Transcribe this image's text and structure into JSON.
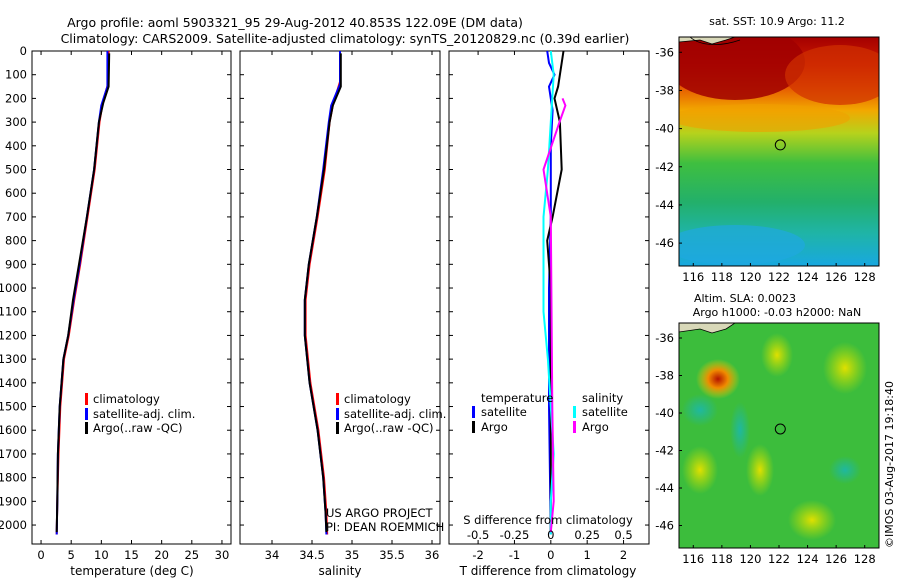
{
  "header": {
    "line1": "Argo profile: aoml 5903321_95 29-Aug-2012 40.853S 122.09E (DM data)",
    "line2": "Climatology: CARS2009. Satellite-adjusted climatology: synTS_20120829.nc (0.39d earlier)"
  },
  "colors": {
    "climatology": "#ff0000",
    "satellite": "#0000ff",
    "argo": "#000000",
    "sat_salinity": "#00ffff",
    "argo_salinity": "#ff00ff"
  },
  "legend_main": [
    "climatology",
    "satellite-adj. clim.",
    "Argo(..raw -QC)"
  ],
  "legend_diff": {
    "temperature_header": "temperature",
    "salinity_header": "salinity",
    "satellite": "satellite",
    "argo": "Argo"
  },
  "credit": {
    "project": "US ARGO PROJECT",
    "pi": "PI: DEAN ROEMMICH"
  },
  "footer": "©IMOS 03-Aug-2017 19:18:40",
  "chart_data": [
    {
      "type": "line",
      "title": "",
      "xlabel": "temperature (deg C)",
      "ylabel": "",
      "xlim": [
        -1.5,
        31.5
      ],
      "ylim": [
        2080,
        0
      ],
      "xticks": [
        0,
        5,
        10,
        15,
        20,
        25,
        30
      ],
      "yticks": [
        0,
        100,
        200,
        300,
        400,
        500,
        600,
        700,
        800,
        900,
        1000,
        1100,
        1200,
        1300,
        1400,
        1500,
        1600,
        1700,
        1800,
        1900,
        2000
      ],
      "series": [
        {
          "name": "climatology",
          "color": "#ff0000",
          "points": [
            [
              11.2,
              0
            ],
            [
              11.1,
              140
            ],
            [
              10.2,
              220
            ],
            [
              9.7,
              300
            ],
            [
              8.9,
              500
            ],
            [
              7.7,
              700
            ],
            [
              6.5,
              900
            ],
            [
              5.5,
              1050
            ],
            [
              4.6,
              1200
            ],
            [
              3.8,
              1300
            ],
            [
              3.2,
              1500
            ],
            [
              2.9,
              1700
            ],
            [
              2.7,
              1900
            ],
            [
              2.6,
              2040
            ]
          ]
        },
        {
          "name": "satellite-adj. clim.",
          "color": "#0000ff",
          "points": [
            [
              11.0,
              0
            ],
            [
              11.0,
              150
            ],
            [
              10.0,
              230
            ],
            [
              9.6,
              300
            ],
            [
              8.8,
              500
            ],
            [
              7.6,
              700
            ],
            [
              6.4,
              900
            ],
            [
              5.4,
              1050
            ],
            [
              4.5,
              1200
            ],
            [
              3.7,
              1300
            ],
            [
              3.1,
              1500
            ],
            [
              2.8,
              1700
            ],
            [
              2.7,
              1900
            ],
            [
              2.6,
              2040
            ]
          ]
        },
        {
          "name": "Argo(..raw -QC)",
          "color": "#000000",
          "points": [
            [
              11.3,
              10
            ],
            [
              11.2,
              150
            ],
            [
              10.3,
              220
            ],
            [
              9.6,
              300
            ],
            [
              8.8,
              500
            ],
            [
              7.6,
              700
            ],
            [
              6.3,
              900
            ],
            [
              5.3,
              1050
            ],
            [
              4.5,
              1200
            ],
            [
              3.7,
              1300
            ],
            [
              3.1,
              1500
            ],
            [
              2.8,
              1700
            ],
            [
              2.7,
              1900
            ],
            [
              2.6,
              2030
            ]
          ]
        }
      ]
    },
    {
      "type": "line",
      "title": "",
      "xlabel": "salinity",
      "ylabel": "",
      "xlim": [
        33.6,
        36.1
      ],
      "ylim": [
        2080,
        0
      ],
      "xticks": [
        34,
        34.5,
        35,
        35.5,
        36
      ],
      "series": [
        {
          "name": "climatology",
          "color": "#ff0000",
          "points": [
            [
              34.85,
              0
            ],
            [
              34.85,
              130
            ],
            [
              34.76,
              230
            ],
            [
              34.72,
              300
            ],
            [
              34.66,
              500
            ],
            [
              34.57,
              700
            ],
            [
              34.47,
              900
            ],
            [
              34.42,
              1050
            ],
            [
              34.42,
              1200
            ],
            [
              34.48,
              1400
            ],
            [
              34.58,
              1600
            ],
            [
              34.65,
              1800
            ],
            [
              34.68,
              1950
            ],
            [
              34.69,
              2040
            ]
          ]
        },
        {
          "name": "satellite-adj. clim.",
          "color": "#0000ff",
          "points": [
            [
              34.85,
              0
            ],
            [
              34.85,
              140
            ],
            [
              34.74,
              230
            ],
            [
              34.71,
              300
            ],
            [
              34.64,
              500
            ],
            [
              34.56,
              700
            ],
            [
              34.46,
              900
            ],
            [
              34.41,
              1050
            ],
            [
              34.41,
              1200
            ],
            [
              34.47,
              1400
            ],
            [
              34.57,
              1600
            ],
            [
              34.64,
              1800
            ],
            [
              34.67,
              1950
            ],
            [
              34.68,
              2040
            ]
          ]
        },
        {
          "name": "Argo(..raw -QC)",
          "color": "#000000",
          "points": [
            [
              34.86,
              10
            ],
            [
              34.86,
              150
            ],
            [
              34.76,
              230
            ],
            [
              34.72,
              300
            ],
            [
              34.65,
              500
            ],
            [
              34.56,
              700
            ],
            [
              34.46,
              900
            ],
            [
              34.41,
              1050
            ],
            [
              34.41,
              1200
            ],
            [
              34.47,
              1400
            ],
            [
              34.57,
              1600
            ],
            [
              34.64,
              1800
            ],
            [
              34.67,
              1950
            ],
            [
              34.68,
              2030
            ]
          ]
        }
      ]
    },
    {
      "type": "line",
      "title": "",
      "xlabel": "T difference from climatology",
      "secondary_xlabel": "S difference from climatology",
      "xlim": [
        -2.8,
        2.7
      ],
      "ylim": [
        2080,
        0
      ],
      "xticks": [
        -2,
        -1,
        0,
        1,
        2
      ],
      "secondary_xticks": [
        -0.5,
        -0.25,
        0,
        0.25,
        0.5
      ],
      "series": [
        {
          "name": "T satellite",
          "color": "#0000ff",
          "points": [
            [
              -0.1,
              0
            ],
            [
              -0.05,
              50
            ],
            [
              0.1,
              100
            ],
            [
              -0.05,
              150
            ],
            [
              0.05,
              250
            ],
            [
              0,
              400
            ],
            [
              0,
              700
            ],
            [
              -0.05,
              1000
            ],
            [
              -0.05,
              1500
            ],
            [
              0,
              2040
            ]
          ]
        },
        {
          "name": "T Argo",
          "color": "#000000",
          "points": [
            [
              0.35,
              0
            ],
            [
              0.3,
              50
            ],
            [
              0.25,
              100
            ],
            [
              0.2,
              150
            ],
            [
              0.1,
              200
            ],
            [
              0.25,
              300
            ],
            [
              0.3,
              500
            ],
            [
              0.05,
              700
            ],
            [
              -0.1,
              800
            ],
            [
              0,
              1000
            ],
            [
              0,
              1500
            ],
            [
              0,
              2030
            ]
          ]
        },
        {
          "name": "S satellite",
          "color": "#00ffff",
          "points": [
            [
              0,
              0
            ],
            [
              0.02,
              100
            ],
            [
              0,
              300
            ],
            [
              -0.02,
              500
            ],
            [
              -0.05,
              700
            ],
            [
              -0.05,
              900
            ],
            [
              -0.05,
              1100
            ],
            [
              -0.02,
              1300
            ],
            [
              0,
              1500
            ],
            [
              0.02,
              1700
            ],
            [
              0,
              1900
            ],
            [
              0,
              2040
            ]
          ]
        },
        {
          "name": "S Argo",
          "color": "#ff00ff",
          "points": [
            [
              0.08,
              200
            ],
            [
              0.1,
              230
            ],
            [
              0.06,
              300
            ],
            [
              -0.05,
              500
            ],
            [
              0,
              700
            ],
            [
              0.01,
              1500
            ],
            [
              0.02,
              1900
            ],
            [
              0,
              2030
            ]
          ]
        }
      ]
    },
    {
      "type": "heatmap",
      "title": "sat. SST: 10.9 Argo: 11.2",
      "xticks": [
        116,
        118,
        120,
        122,
        124,
        126,
        128
      ],
      "yticks": [
        -36,
        -38,
        -40,
        -42,
        -44,
        -46
      ],
      "xlim": [
        115,
        129
      ],
      "ylim": [
        -47.2,
        -35.2
      ],
      "marker": {
        "lon": 122.09,
        "lat": -40.853
      }
    },
    {
      "type": "heatmap",
      "title": "Altim. SLA: 0.0023",
      "subtitle": "Argo h1000: -0.03 h2000: NaN",
      "xticks": [
        116,
        118,
        120,
        122,
        124,
        126,
        128
      ],
      "yticks": [
        -36,
        -38,
        -40,
        -42,
        -44,
        -46
      ],
      "xlim": [
        115,
        129
      ],
      "ylim": [
        -47.2,
        -35.2
      ],
      "marker": {
        "lon": 122.09,
        "lat": -40.853
      }
    }
  ]
}
